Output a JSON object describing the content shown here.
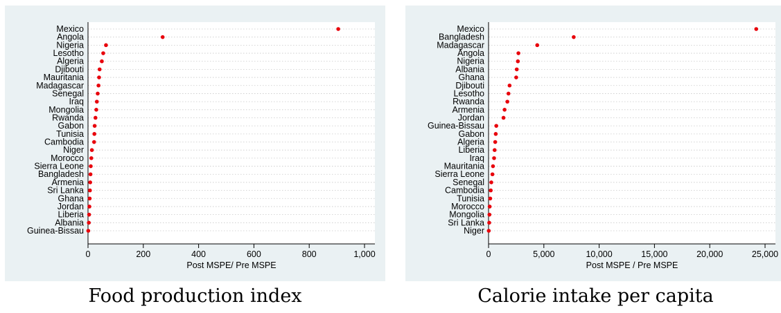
{
  "chart_data": [
    {
      "type": "scatter",
      "caption": "Food production index",
      "xlabel": "Post MSPE/ Pre MSPE",
      "xlim": [
        0,
        1000
      ],
      "xticks": [
        0,
        200,
        400,
        600,
        800,
        1000
      ],
      "xtick_labels": [
        "0",
        "200",
        "400",
        "600",
        "800",
        "1,000"
      ],
      "grid": "horizontal dotted",
      "marker_color": "#e8000b",
      "categories": [
        "Mexico",
        "Angola",
        "Nigeria",
        "Lesotho",
        "Algeria",
        "Djibouti",
        "Mauritania",
        "Madagascar",
        "Senegal",
        "Iraq",
        "Mongolia",
        "Rwanda",
        "Gabon",
        "Tunisia",
        "Cambodia",
        "Niger",
        "Morocco",
        "Sierra Leone",
        "Bangladesh",
        "Armenia",
        "Sri Lanka",
        "Ghana",
        "Jordan",
        "Liberia",
        "Albania",
        "Guinea-Bissau"
      ],
      "values": [
        905,
        270,
        65,
        55,
        50,
        42,
        40,
        38,
        35,
        32,
        30,
        27,
        24,
        23,
        22,
        14,
        12,
        10,
        9,
        8,
        7,
        6,
        5,
        4,
        3,
        1
      ]
    },
    {
      "type": "scatter",
      "caption": "Calorie intake per capita",
      "xlabel": "Post MSPE /  Pre MSPE",
      "xlim": [
        0,
        25000
      ],
      "xticks": [
        0,
        5000,
        10000,
        15000,
        20000,
        25000
      ],
      "xtick_labels": [
        "0",
        "5,000",
        "10,000",
        "15,000",
        "20,000",
        "25,000"
      ],
      "grid": "horizontal dotted",
      "marker_color": "#e8000b",
      "categories": [
        "Mexico",
        "Bangladesh",
        "Madagascar",
        "Angola",
        "Nigeria",
        "Albania",
        "Ghana",
        "Djibouti",
        "Lesotho",
        "Rwanda",
        "Armenia",
        "Jordan",
        "Guinea-Bissau",
        "Gabon",
        "Algeria",
        "Liberia",
        "Iraq",
        "Mauritania",
        "Sierra Leone",
        "Senegal",
        "Cambodia",
        "Tunisia",
        "Morocco",
        "Mongolia",
        "Sri Lanka",
        "Niger"
      ],
      "values": [
        24200,
        7700,
        4400,
        2700,
        2650,
        2550,
        2500,
        1900,
        1800,
        1700,
        1450,
        1350,
        700,
        650,
        600,
        550,
        500,
        400,
        350,
        250,
        200,
        150,
        100,
        80,
        60,
        20
      ]
    }
  ]
}
